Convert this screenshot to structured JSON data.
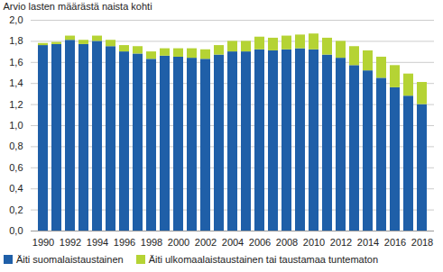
{
  "chart_data": {
    "type": "bar",
    "stacked": true,
    "ylabel": "Arvio lasten määrästä naista kohti",
    "categories": [
      "1990",
      null,
      "1992",
      null,
      "1994",
      null,
      "1996",
      null,
      "1998",
      null,
      "2000",
      null,
      "2002",
      null,
      "2004",
      null,
      "2006",
      null,
      "2008",
      null,
      "2010",
      null,
      "2012",
      null,
      "2014",
      null,
      "2016",
      null,
      "2018"
    ],
    "series": [
      {
        "name": "Äiti suomalaistaustainen",
        "color": "#1f5fa8",
        "values": [
          1.76,
          1.77,
          1.81,
          1.77,
          1.8,
          1.75,
          1.7,
          1.68,
          1.63,
          1.66,
          1.65,
          1.64,
          1.63,
          1.67,
          1.7,
          1.7,
          1.72,
          1.71,
          1.72,
          1.73,
          1.72,
          1.67,
          1.64,
          1.57,
          1.52,
          1.45,
          1.36,
          1.28,
          1.2
        ]
      },
      {
        "name": "Äiti ulkomaalaistaustainen tai taustamaa tuntematon",
        "color": "#b5d334",
        "values": [
          0.02,
          0.02,
          0.04,
          0.04,
          0.05,
          0.06,
          0.06,
          0.07,
          0.07,
          0.07,
          0.08,
          0.09,
          0.09,
          0.09,
          0.1,
          0.1,
          0.12,
          0.12,
          0.13,
          0.13,
          0.15,
          0.16,
          0.16,
          0.18,
          0.19,
          0.2,
          0.21,
          0.21,
          0.21
        ]
      }
    ],
    "ylim": [
      0,
      2
    ],
    "yticks": [
      {
        "value": 0,
        "label": "0,0"
      },
      {
        "value": 0.2,
        "label": "0,2"
      },
      {
        "value": 0.4,
        "label": "0,4"
      },
      {
        "value": 0.6,
        "label": "0,6"
      },
      {
        "value": 0.8,
        "label": "0,8"
      },
      {
        "value": 1,
        "label": "1,0"
      },
      {
        "value": 1.2,
        "label": "1,2"
      },
      {
        "value": 1.4,
        "label": "1,4"
      },
      {
        "value": 1.6,
        "label": "1,6"
      },
      {
        "value": 1.8,
        "label": "1,8"
      },
      {
        "value": 2,
        "label": "2,0"
      }
    ],
    "grid": true,
    "legend": "bottom"
  }
}
